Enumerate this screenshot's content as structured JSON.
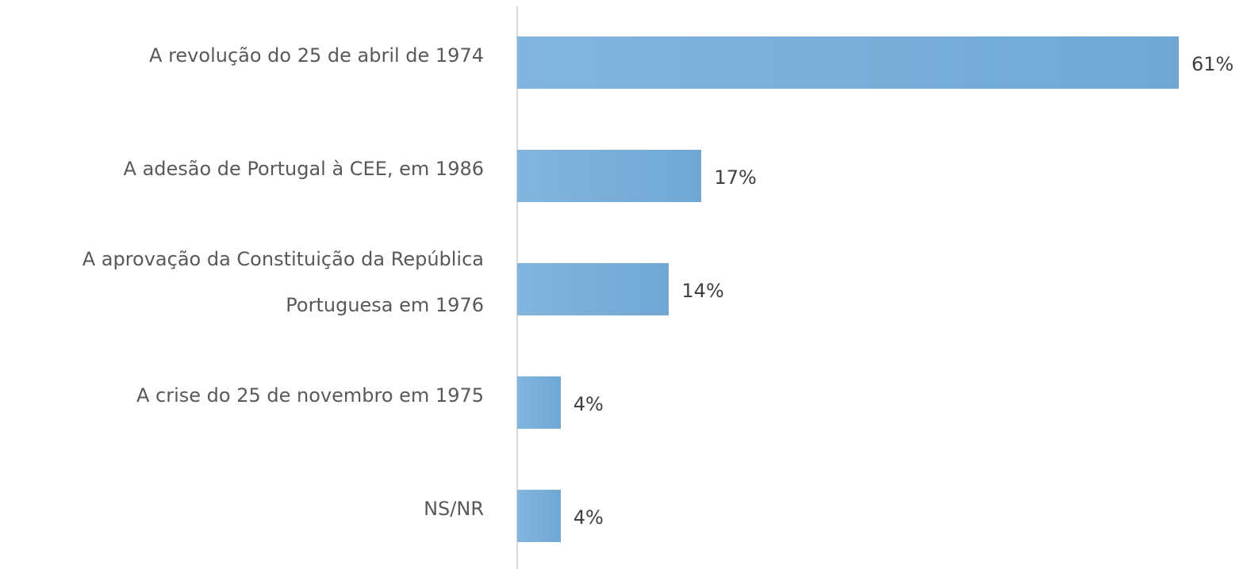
{
  "chart_data": {
    "type": "bar",
    "orientation": "horizontal",
    "categories": [
      "A revolução do 25 de abril de 1974",
      "A adesão de Portugal à CEE, em 1986",
      "A aprovação da Constituição da República Portuguesa em 1976",
      "A crise do 25 de novembro em 1975",
      "NS/NR"
    ],
    "values": [
      61,
      17,
      14,
      4,
      4
    ],
    "value_labels": [
      "61%",
      "17%",
      "14%",
      "4%",
      "4%"
    ],
    "color": "#76abd7"
  }
}
